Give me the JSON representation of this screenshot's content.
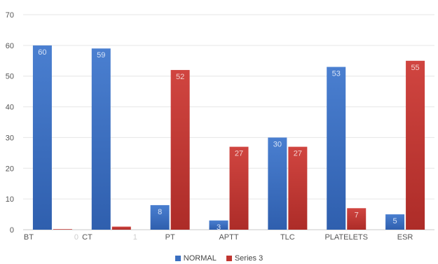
{
  "chart_data": {
    "type": "bar",
    "categories": [
      "BT",
      "CT",
      "PT",
      "APTT",
      "TLC",
      "PLATELETS",
      "ESR"
    ],
    "series": [
      {
        "name": "NORMAL",
        "values": [
          60,
          59,
          8,
          3,
          30,
          53,
          5
        ],
        "color": "#3a6fc0"
      },
      {
        "name": "Series 3",
        "values": [
          0,
          1,
          52,
          27,
          27,
          7,
          55
        ],
        "color": "#c03530"
      }
    ],
    "ylim": [
      0,
      70
    ],
    "yticks": [
      0,
      10,
      20,
      30,
      40,
      50,
      60,
      70
    ],
    "grid": true,
    "data_labels": true,
    "legend_position": "bottom"
  }
}
